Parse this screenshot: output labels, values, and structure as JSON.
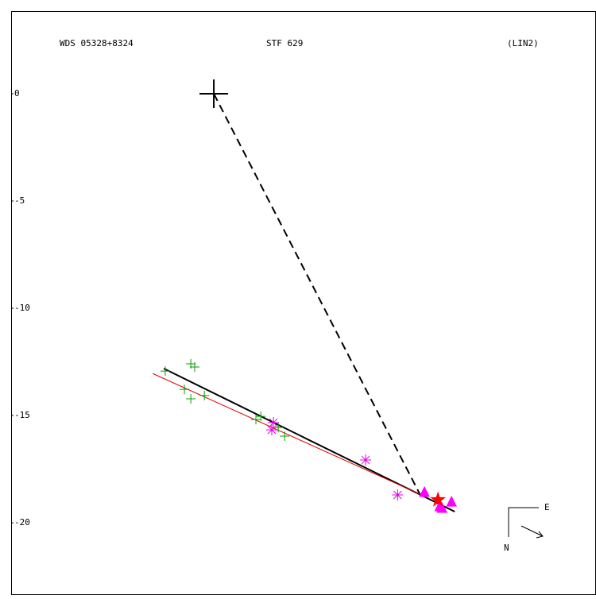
{
  "chart_data": {
    "type": "scatter",
    "labels": {
      "left": "WDS 05328+8324",
      "center": "STF 629",
      "right": "(LIN2)"
    },
    "compass": {
      "east": "E",
      "north": "N"
    },
    "xlim": [
      -9.44,
      17.8
    ],
    "ylim": [
      -23.33,
      3.85
    ],
    "yticks": [
      0,
      -5,
      -10,
      -15,
      -20
    ],
    "series": [
      {
        "marker": "big-plus",
        "color": "#000000",
        "x": [
          0
        ],
        "y": [
          0
        ]
      },
      {
        "marker": "plus",
        "color": "#00a000",
        "x": [
          -1.07,
          -0.89,
          -1.37,
          -1.07,
          -0.44,
          1.96,
          2.19,
          3.0,
          3.3,
          -2.26
        ],
        "y": [
          -12.59,
          -12.74,
          -13.78,
          -14.22,
          -14.07,
          -15.19,
          -15.04,
          -15.56,
          -15.96,
          -12.93
        ]
      },
      {
        "marker": "asterisk",
        "color": "#e000e0",
        "x": [
          2.78,
          2.7,
          7.07,
          8.56
        ],
        "y": [
          -15.33,
          -15.67,
          -17.07,
          -18.7
        ]
      },
      {
        "marker": "triangle",
        "color": "#ff00ff",
        "x": [
          9.81,
          10.52,
          11.07,
          10.63
        ],
        "y": [
          -18.59,
          -19.26,
          -19.04,
          -19.33
        ]
      },
      {
        "marker": "star",
        "color": "#ff0000",
        "x": [
          10.44
        ],
        "y": [
          -18.93
        ]
      }
    ],
    "lines": [
      {
        "color": "#000000",
        "dash": true,
        "width": 2,
        "x": [
          0,
          9.67
        ],
        "y": [
          0,
          -18.81
        ]
      },
      {
        "color": "#000000",
        "dash": false,
        "width": 2,
        "x": [
          -2.33,
          11.22
        ],
        "y": [
          -12.81,
          -19.48
        ]
      },
      {
        "color": "#dd0000",
        "dash": false,
        "width": 1,
        "x": [
          -2.85,
          9.85
        ],
        "y": [
          -13.04,
          -18.78
        ]
      }
    ]
  }
}
